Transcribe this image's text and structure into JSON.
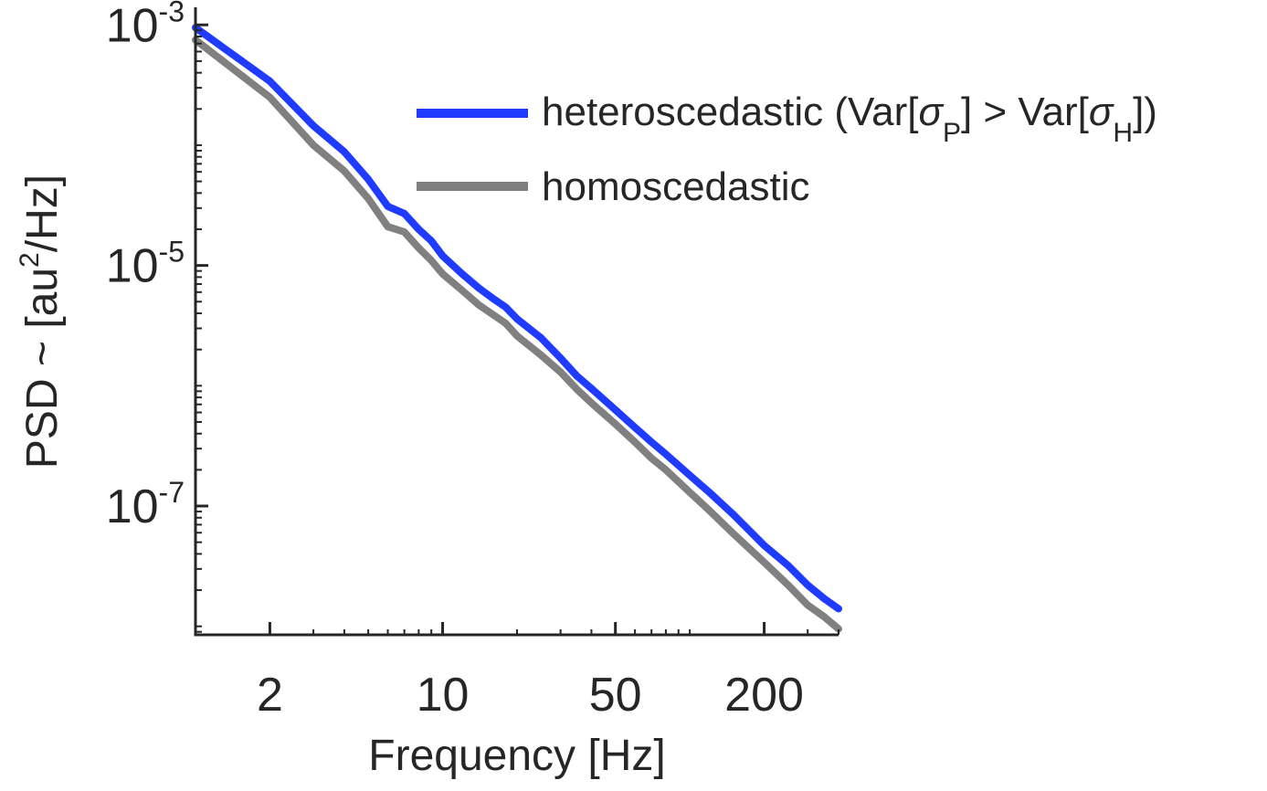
{
  "chart_data": {
    "type": "line",
    "title": "",
    "xlabel": "Frequency [Hz]",
    "ylabel": {
      "prefix": "PSD ~ [au",
      "sup": "2",
      "suffix": "/Hz]"
    },
    "x_scale": "log",
    "y_scale": "log",
    "xlim": [
      1,
      400
    ],
    "ylim": [
      8.5e-09,
      0.0014
    ],
    "x_ticks": [
      2,
      10,
      50,
      200
    ],
    "x_tick_labels": [
      "2",
      "10",
      "50",
      "200"
    ],
    "y_ticks": [
      0.001,
      1e-05,
      1e-07
    ],
    "y_tick_labels": [
      {
        "base": "10",
        "exp": "-3"
      },
      {
        "base": "10",
        "exp": "-5"
      },
      {
        "base": "10",
        "exp": "-7"
      }
    ],
    "grid": false,
    "legend_position": "top-right",
    "series": [
      {
        "name": "heteroscedastic (Var[σP] > Var[σH])",
        "legend": {
          "main": "heteroscedastic (Var[",
          "sym1": "σ",
          "sub1": "P",
          "mid": "] > Var[",
          "sym2": "σ",
          "sub2": "H",
          "end": "])"
        },
        "color": "#1f3bff",
        "x": [
          1,
          2,
          3,
          4,
          5,
          6,
          7,
          8,
          9,
          10,
          12,
          14,
          16,
          18,
          20,
          25,
          30,
          35,
          40,
          50,
          60,
          70,
          80,
          100,
          120,
          150,
          200,
          250,
          300,
          350,
          400
        ],
        "y": [
          0.00095,
          0.00034,
          0.000145,
          8.8e-05,
          5.2e-05,
          3.1e-05,
          2.7e-05,
          2e-05,
          1.6e-05,
          1.2e-05,
          8.5e-06,
          6.5e-06,
          5.3e-06,
          4.5e-06,
          3.6e-06,
          2.5e-06,
          1.7e-06,
          1.2e-06,
          9.5e-07,
          6.3e-07,
          4.5e-07,
          3.4e-07,
          2.7e-07,
          1.8e-07,
          1.3e-07,
          8.5e-08,
          4.7e-08,
          3.2e-08,
          2.2e-08,
          1.7e-08,
          1.4e-08
        ]
      },
      {
        "name": "homoscedastic",
        "legend": {
          "main": "homoscedastic"
        },
        "color": "#808080",
        "x": [
          1,
          2,
          3,
          4,
          5,
          6,
          7,
          8,
          9,
          10,
          12,
          14,
          16,
          18,
          20,
          25,
          30,
          35,
          40,
          50,
          60,
          70,
          80,
          100,
          120,
          150,
          200,
          250,
          300,
          350,
          400
        ],
        "y": [
          0.00075,
          0.00025,
          0.0001,
          6.1e-05,
          3.6e-05,
          2.1e-05,
          1.9e-05,
          1.4e-05,
          1.1e-05,
          8.5e-06,
          6.2e-06,
          4.7e-06,
          3.9e-06,
          3.3e-06,
          2.6e-06,
          1.8e-06,
          1.3e-06,
          9.3e-07,
          7.2e-07,
          4.8e-07,
          3.4e-07,
          2.5e-07,
          2e-07,
          1.3e-07,
          9.2e-08,
          5.9e-08,
          3.4e-08,
          2.2e-08,
          1.5e-08,
          1.2e-08,
          9.5e-09
        ]
      }
    ]
  }
}
